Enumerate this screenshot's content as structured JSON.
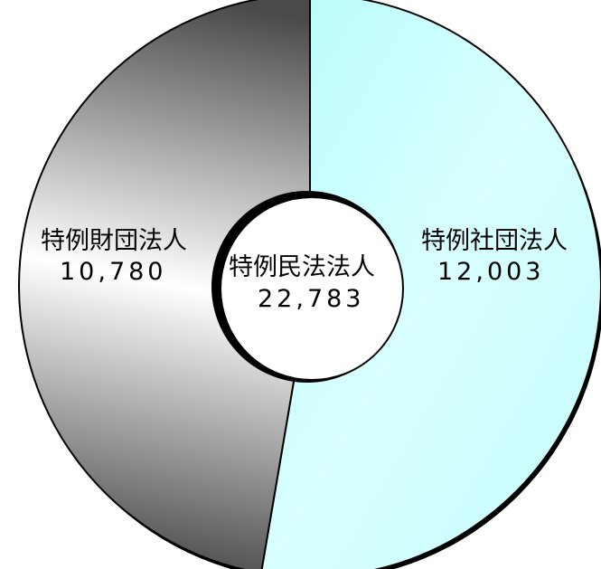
{
  "chart_data": {
    "type": "pie",
    "center_label": "特例民法法人",
    "center_value": "22,783",
    "slices": [
      {
        "label": "特例社団法人",
        "value_text": "12,003",
        "value": 12003,
        "color": "#ccffff"
      },
      {
        "label": "特例財団法人",
        "value_text": "10,780",
        "value": 10780,
        "color": "#808080"
      }
    ],
    "colors": {
      "shadow": "#000000",
      "outline": "#000000",
      "gray_light": "#ffffff",
      "gray_dark": "#4d4d4d"
    }
  }
}
